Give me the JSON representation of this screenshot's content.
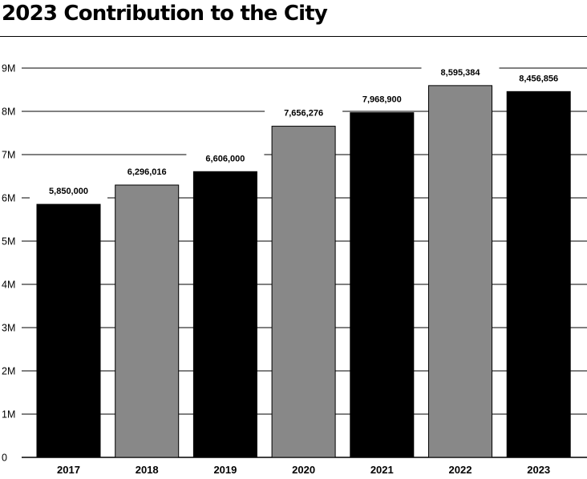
{
  "title": "2023 Contribution to the City",
  "chart_data": {
    "type": "bar",
    "title": "2023 Contribution to the City",
    "xlabel": "",
    "ylabel": "",
    "categories": [
      "2017",
      "2018",
      "2019",
      "2020",
      "2021",
      "2022",
      "2023"
    ],
    "values": [
      5850000,
      6296016,
      6606000,
      7656276,
      7968900,
      8595384,
      8456856
    ],
    "data_labels": [
      "5,850,000",
      "6,296,016",
      "6,606,000",
      "7,656,276",
      "7,968,900",
      "8,595,384",
      "8,456,856"
    ],
    "bar_colors": [
      "#000000",
      "#888888",
      "#000000",
      "#888888",
      "#000000",
      "#888888",
      "#000000"
    ],
    "ylim": [
      0,
      9000000
    ],
    "yticks": [
      0,
      1000000,
      2000000,
      3000000,
      4000000,
      5000000,
      6000000,
      7000000,
      8000000,
      9000000
    ],
    "ytick_labels": [
      "0",
      "1M",
      "2M",
      "3M",
      "4M",
      "5M",
      "6M",
      "7M",
      "8M",
      "9M"
    ],
    "grid": true,
    "legend": "none"
  }
}
